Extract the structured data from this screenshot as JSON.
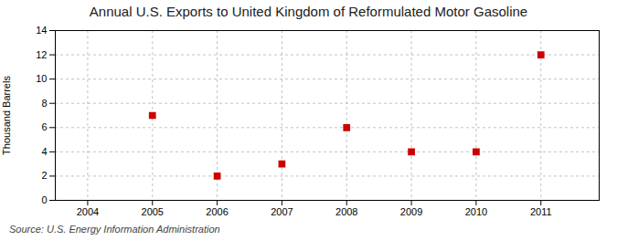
{
  "chart_data": {
    "type": "scatter",
    "title": "Annual U.S. Exports to United Kingdom of Reformulated Motor Gasoline",
    "ylabel": "Thousand Barrels",
    "source": "Source: U.S. Energy Information Administration",
    "x": [
      2005,
      2006,
      2007,
      2008,
      2009,
      2010,
      2011
    ],
    "values": [
      7,
      2,
      3,
      6,
      4,
      4,
      12
    ],
    "xlim": [
      2003.5,
      2011.9
    ],
    "ylim": [
      0,
      14
    ],
    "xticks": [
      2004,
      2005,
      2006,
      2007,
      2008,
      2009,
      2010,
      2011
    ],
    "yticks": [
      0,
      2,
      4,
      6,
      8,
      10,
      12,
      14
    ],
    "color": "#CC0000",
    "marker": "square",
    "grid": true
  }
}
